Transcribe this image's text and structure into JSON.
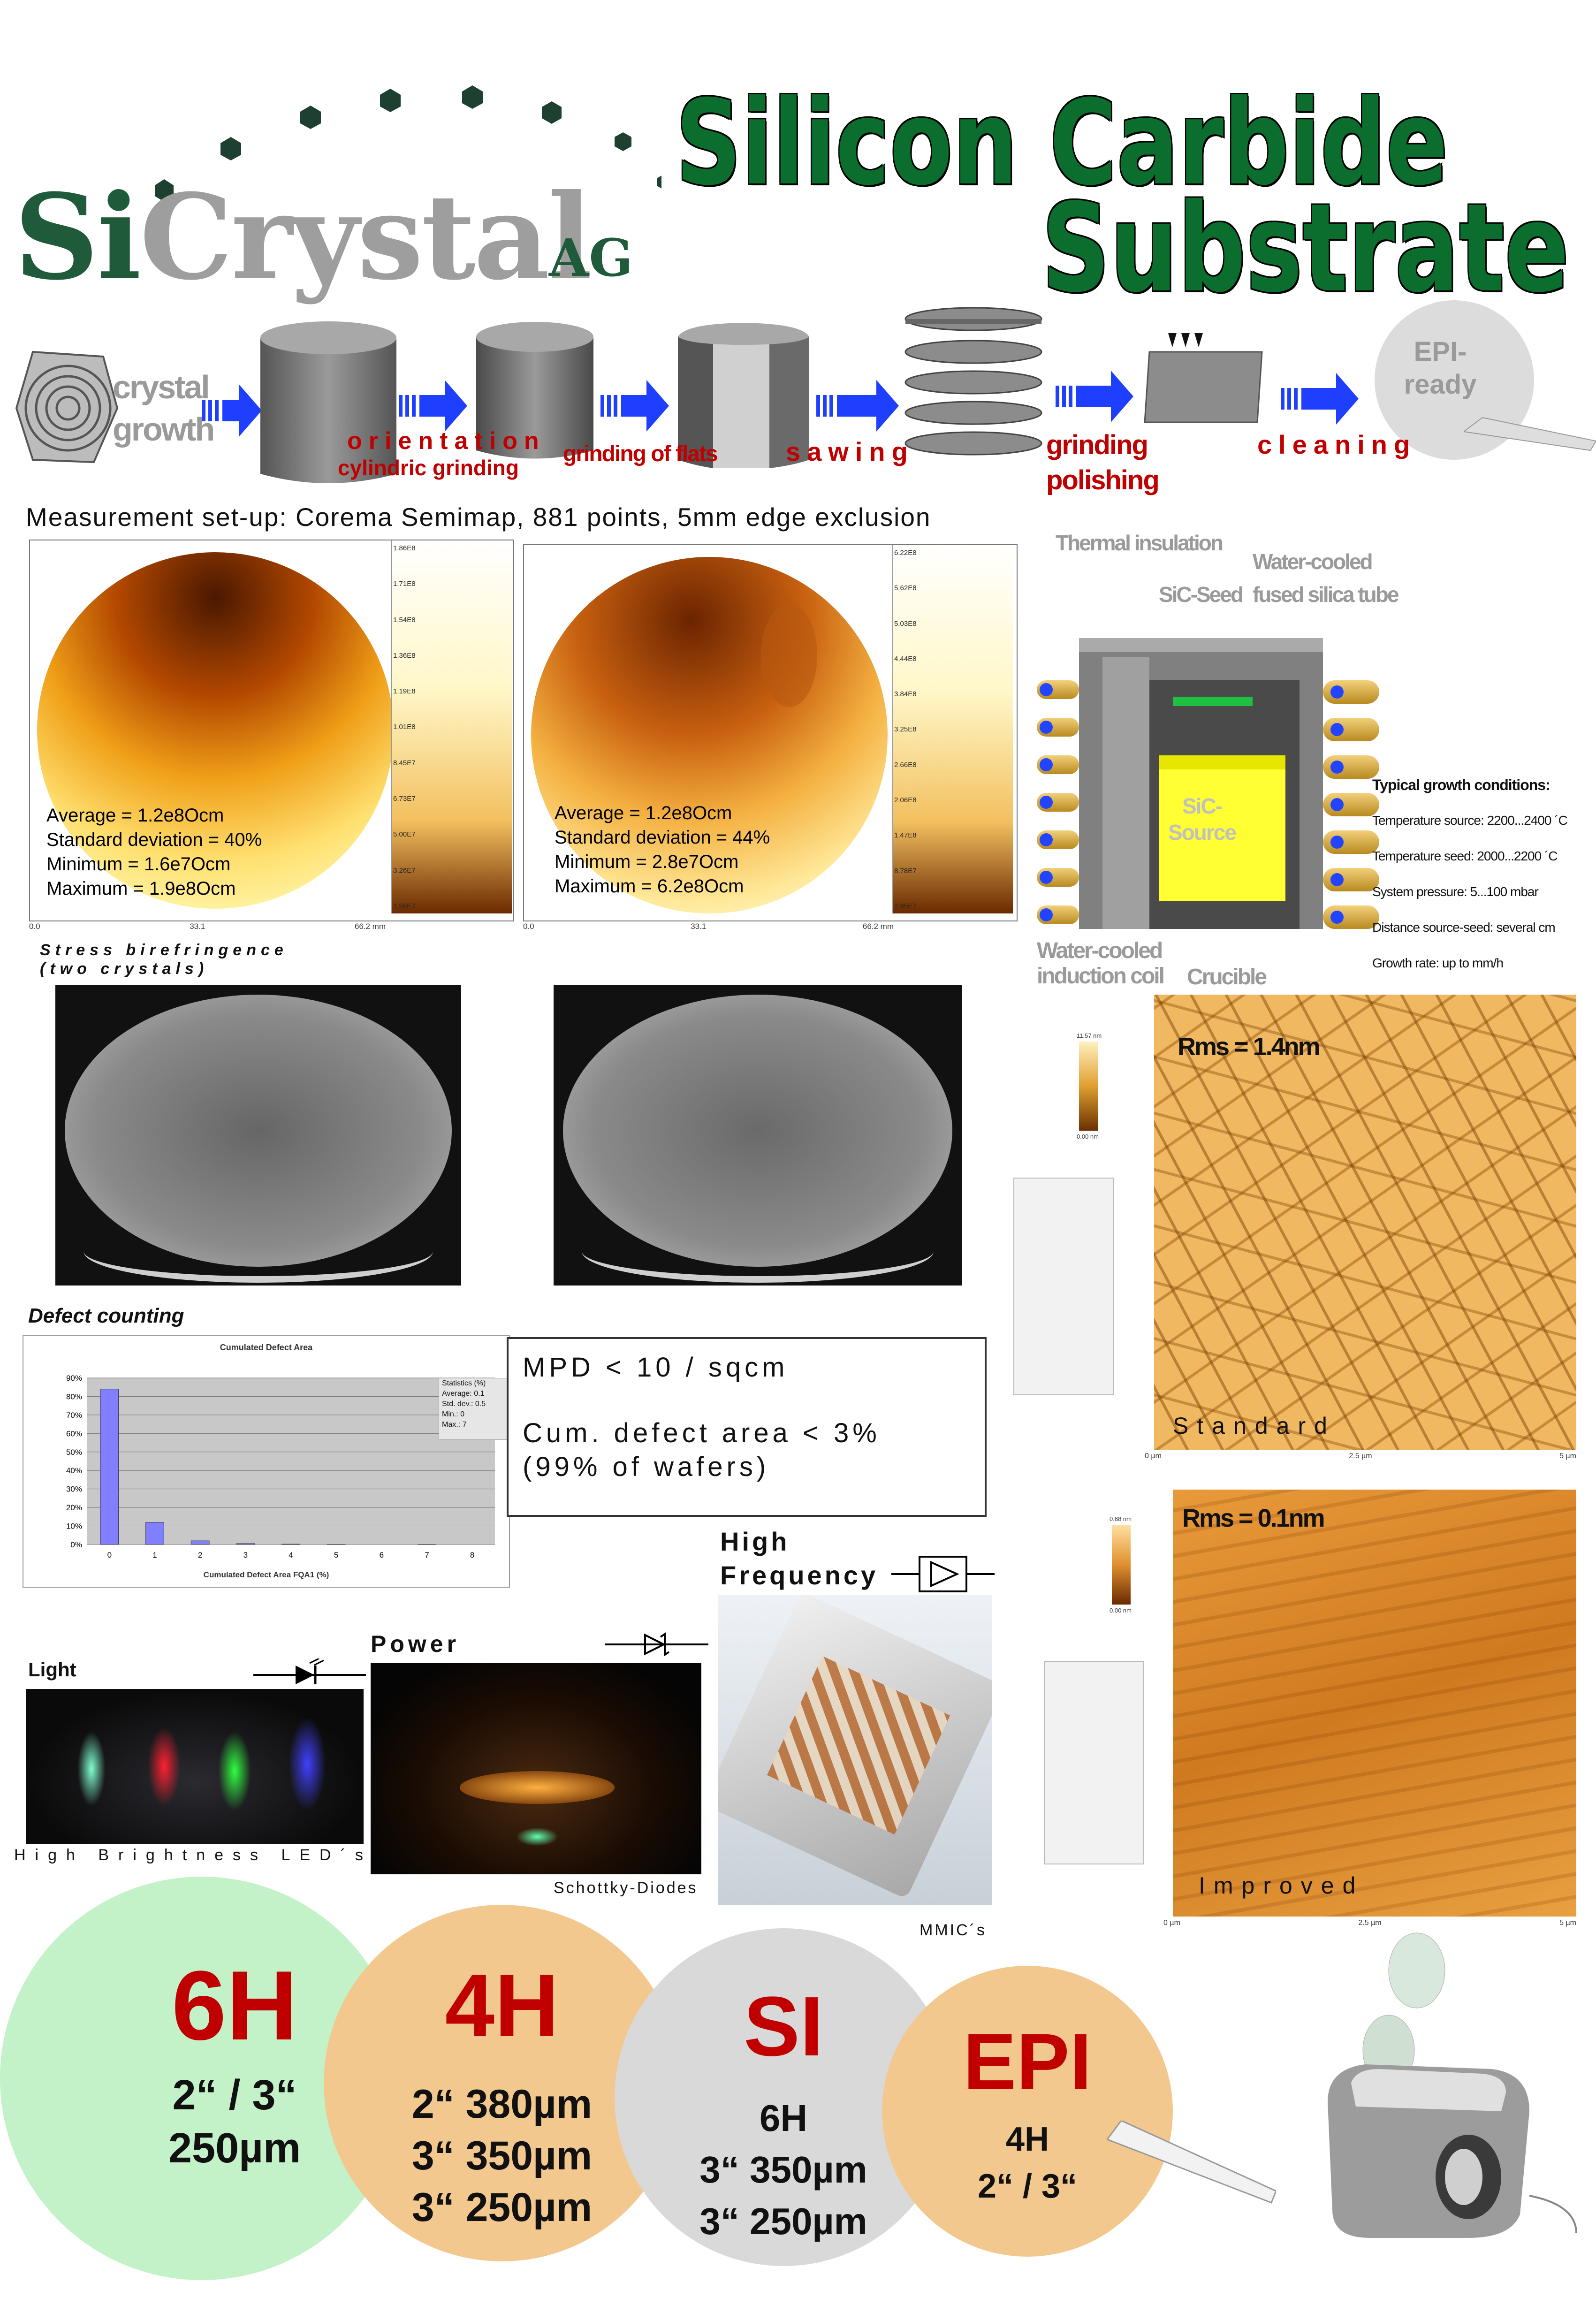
{
  "logo": {
    "text_si": "Si",
    "text_crystal": "Crystal",
    "text_ag": "AG"
  },
  "title": {
    "line1": "Silicon Carbide",
    "line2": "Substrate"
  },
  "process": {
    "crystal_growth": [
      "crystal",
      "growth"
    ],
    "orientation": "orientation",
    "cylindric": "cylindric grinding",
    "flats": "grinding of flats",
    "sawing": "sawing",
    "grinding": "grinding",
    "polishing": "polishing",
    "cleaning": "cleaning",
    "epi_ready": [
      "EPI-",
      "ready"
    ]
  },
  "measurement_setup": "Measurement set-up: Corema Semimap, 881 points, 5mm edge exclusion",
  "map1": {
    "stats": [
      "Average = 1.2e8Ocm",
      "Standard deviation = 40%",
      "Minimum = 1.6e7Ocm",
      "Maximum = 1.9e8Ocm"
    ],
    "scale": [
      "1.86E8",
      "1.71E8",
      "1.54E8",
      "1.36E8",
      "1.19E8",
      "1.01E8",
      "8.45E7",
      "6.73E7",
      "5.00E7",
      "3.26E7",
      "1.55E7"
    ],
    "axis": [
      "0.0",
      "33.1",
      "66.2 mm"
    ]
  },
  "map2": {
    "stats": [
      "Average = 1.2e8Ocm",
      "Standard deviation = 44%",
      "Minimum = 2.8e7Ocm",
      "Maximum = 6.2e8Ocm"
    ],
    "scale": [
      "6.22E8",
      "5.62E8",
      "5.03E8",
      "4.44E8",
      "3.84E8",
      "3.25E8",
      "2.66E8",
      "2.06E8",
      "1.47E8",
      "8.78E7",
      "2.85E7"
    ],
    "axis": [
      "0.0",
      "33.1",
      "66.2 mm"
    ]
  },
  "furnace": {
    "thermal_insulation": "Thermal insulation",
    "water_cooled_tube": [
      "Water-cooled",
      "fused silica tube"
    ],
    "sic_seed": "SiC-Seed",
    "sic_source": [
      "SiC-",
      "Source"
    ],
    "coil": [
      "Water-cooled",
      "induction coil"
    ],
    "crucible": "Crucible",
    "conditions_title": "Typical growth conditions:",
    "conditions": [
      "Temperature source: 2200...2400 ´C",
      "Temperature seed: 2000...2200 ´C",
      "System pressure: 5...100 mbar",
      "Distance source-seed: several cm",
      "Growth rate: up to mm/h"
    ]
  },
  "stress": {
    "line1": "Stress birefringence",
    "line2": "(two crystals)"
  },
  "defect": {
    "heading": "Defect counting",
    "chart_title": "Cumulated Defect Area",
    "chart_xlabel": "Cumulated Defect Area FQA1 (%)",
    "stats_box": [
      "Statistics (%)",
      "Average: 0.1",
      "Std. dev.: 0.5",
      "Min.: 0",
      "Max.: 7"
    ],
    "mpd": "MPD < 10 / sqcm",
    "cum1": "Cum. defect area < 3%",
    "cum2": "(99% of wafers)"
  },
  "chart_data": {
    "type": "bar",
    "title": "Cumulated Defect Area",
    "xlabel": "Cumulated Defect Area FQA1 (%)",
    "ylabel": "",
    "categories": [
      "0",
      "1",
      "2",
      "3",
      "4",
      "5",
      "6",
      "7",
      "8"
    ],
    "values": [
      84,
      12,
      2,
      0.5,
      0.2,
      0.1,
      0,
      0.1,
      0
    ],
    "yticks": [
      "90%",
      "80%",
      "70%",
      "60%",
      "50%",
      "40%",
      "30%",
      "20%",
      "10%",
      "0%"
    ],
    "ylim": [
      0,
      90
    ],
    "color": "#8080ff"
  },
  "apps": {
    "light": "Light",
    "light_caption": "High Brightness LED´s",
    "power": "Power",
    "power_caption": "Schottky-Diodes",
    "hf": [
      "High",
      "Frequency"
    ],
    "hf_caption": "MMIC´s"
  },
  "afm": {
    "standard": {
      "rms": "Rms = 1.4nm",
      "label": "Standard",
      "scale_top": "11.57 nm",
      "scale_bot": "0.00 nm"
    },
    "improved": {
      "rms": "Rms = 0.1nm",
      "label": "Improved",
      "scale_top": "0.68 nm",
      "scale_bot": "0.00 nm"
    },
    "axis": [
      "0 µm",
      "2.5 µm",
      "5 µm"
    ]
  },
  "products": {
    "p6h": {
      "name": "6H",
      "l1": "2“ / 3“",
      "l2": "250µm"
    },
    "p4h": {
      "name": "4H",
      "l1": "2“ 380µm",
      "l2": "3“ 350µm",
      "l3": "3“ 250µm"
    },
    "psi": {
      "name": "SI",
      "l1": "6H",
      "l2": "3“ 350µm",
      "l3": "3“ 250µm"
    },
    "pepi": {
      "name": "EPI",
      "l1": "4H",
      "l2": "2“ / 3“"
    }
  },
  "colors": {
    "red": "#c00000",
    "green": "#0b6e2e",
    "peach": "#f3c88e",
    "mint": "#bff0c4",
    "gray": "#d9d9d9"
  }
}
